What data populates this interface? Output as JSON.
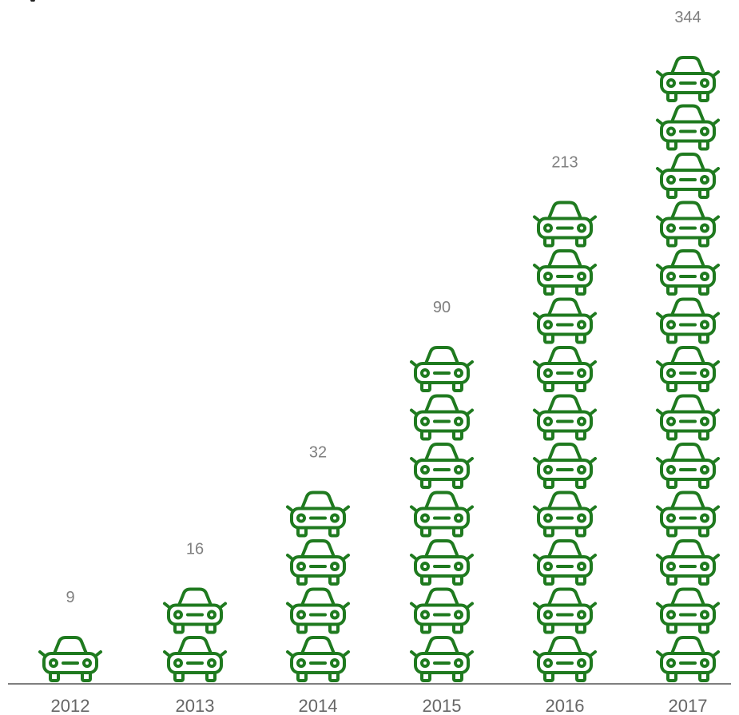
{
  "chart_data": {
    "type": "bar",
    "categories": [
      "2012",
      "2013",
      "2014",
      "2015",
      "2016",
      "2017"
    ],
    "values": [
      9,
      16,
      32,
      90,
      213,
      344
    ],
    "value_labels": [
      "9",
      "16",
      "32",
      "90",
      "213",
      "344"
    ],
    "icon_counts": [
      1,
      2,
      4,
      7,
      10,
      13
    ],
    "mark_icon": "car-icon",
    "colors": {
      "icon": "#1f7a1f",
      "label": "#808080",
      "axis": "#555555",
      "tick": "#666666"
    },
    "xlabel": "",
    "ylabel": "",
    "grid": false,
    "legend": "none"
  }
}
